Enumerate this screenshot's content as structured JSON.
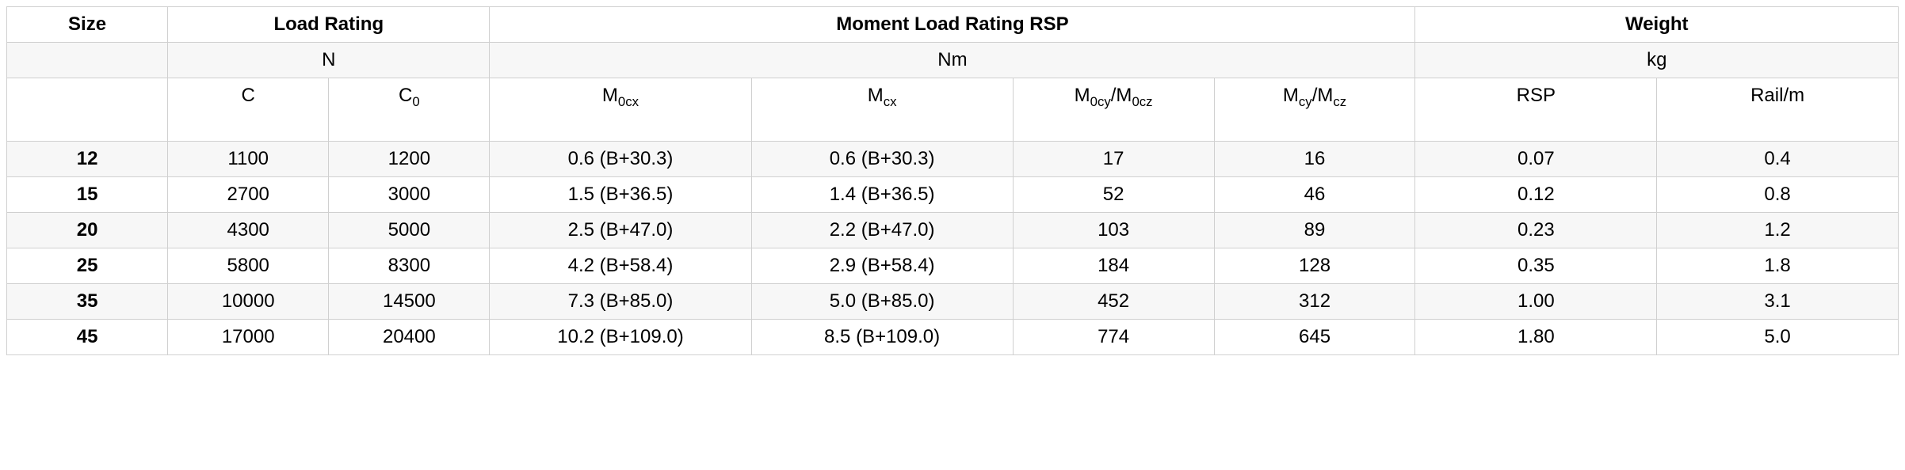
{
  "table": {
    "type": "table",
    "background_color": "#ffffff",
    "alt_row_color": "#f7f7f7",
    "border_color": "#d0d0d0",
    "text_color": "#000000",
    "header_fontsize": 24,
    "cell_fontsize": 24,
    "headers": {
      "size": "Size",
      "load_rating": "Load Rating",
      "moment_load": "Moment Load Rating RSP",
      "weight": "Weight"
    },
    "units": {
      "load_rating": "N",
      "moment_load": "Nm",
      "weight": "kg"
    },
    "subheaders": {
      "c": "C",
      "c0_html": "C<span class=\"sub\">0</span>",
      "m0cx_html": "M<span class=\"sub\">0cx</span>",
      "mcx_html": "M<span class=\"sub\">cx</span>",
      "m0cy_html": "M<span class=\"sub\">0cy</span>/M<span class=\"sub\">0cz</span>",
      "mcy_html": "M<span class=\"sub\">cy</span>/M<span class=\"sub\">cz</span>",
      "rsp": "RSP",
      "rail": "Rail/m"
    },
    "column_widths_pct": [
      8,
      8,
      8,
      13,
      13,
      10,
      10,
      12,
      12
    ],
    "column_align": [
      "center",
      "center",
      "center",
      "center",
      "center",
      "center",
      "center",
      "center",
      "center"
    ],
    "rows": [
      {
        "size": "12",
        "c": "1100",
        "c0": "1200",
        "m0cx": "0.6 (B+30.3)",
        "mcx": "0.6 (B+30.3)",
        "m0cy": "17",
        "mcy": "16",
        "rsp": "0.07",
        "rail": "0.4"
      },
      {
        "size": "15",
        "c": "2700",
        "c0": "3000",
        "m0cx": "1.5 (B+36.5)",
        "mcx": "1.4 (B+36.5)",
        "m0cy": "52",
        "mcy": "46",
        "rsp": "0.12",
        "rail": "0.8"
      },
      {
        "size": "20",
        "c": "4300",
        "c0": "5000",
        "m0cx": "2.5 (B+47.0)",
        "mcx": "2.2 (B+47.0)",
        "m0cy": "103",
        "mcy": "89",
        "rsp": "0.23",
        "rail": "1.2"
      },
      {
        "size": "25",
        "c": "5800",
        "c0": "8300",
        "m0cx": "4.2 (B+58.4)",
        "mcx": "2.9 (B+58.4)",
        "m0cy": "184",
        "mcy": "128",
        "rsp": "0.35",
        "rail": "1.8"
      },
      {
        "size": "35",
        "c": "10000",
        "c0": "14500",
        "m0cx": "7.3 (B+85.0)",
        "mcx": "5.0 (B+85.0)",
        "m0cy": "452",
        "mcy": "312",
        "rsp": "1.00",
        "rail": "3.1"
      },
      {
        "size": "45",
        "c": "17000",
        "c0": "20400",
        "m0cx": "10.2 (B+109.0)",
        "mcx": "8.5 (B+109.0)",
        "m0cy": "774",
        "mcy": "645",
        "rsp": "1.80",
        "rail": "5.0"
      }
    ]
  }
}
